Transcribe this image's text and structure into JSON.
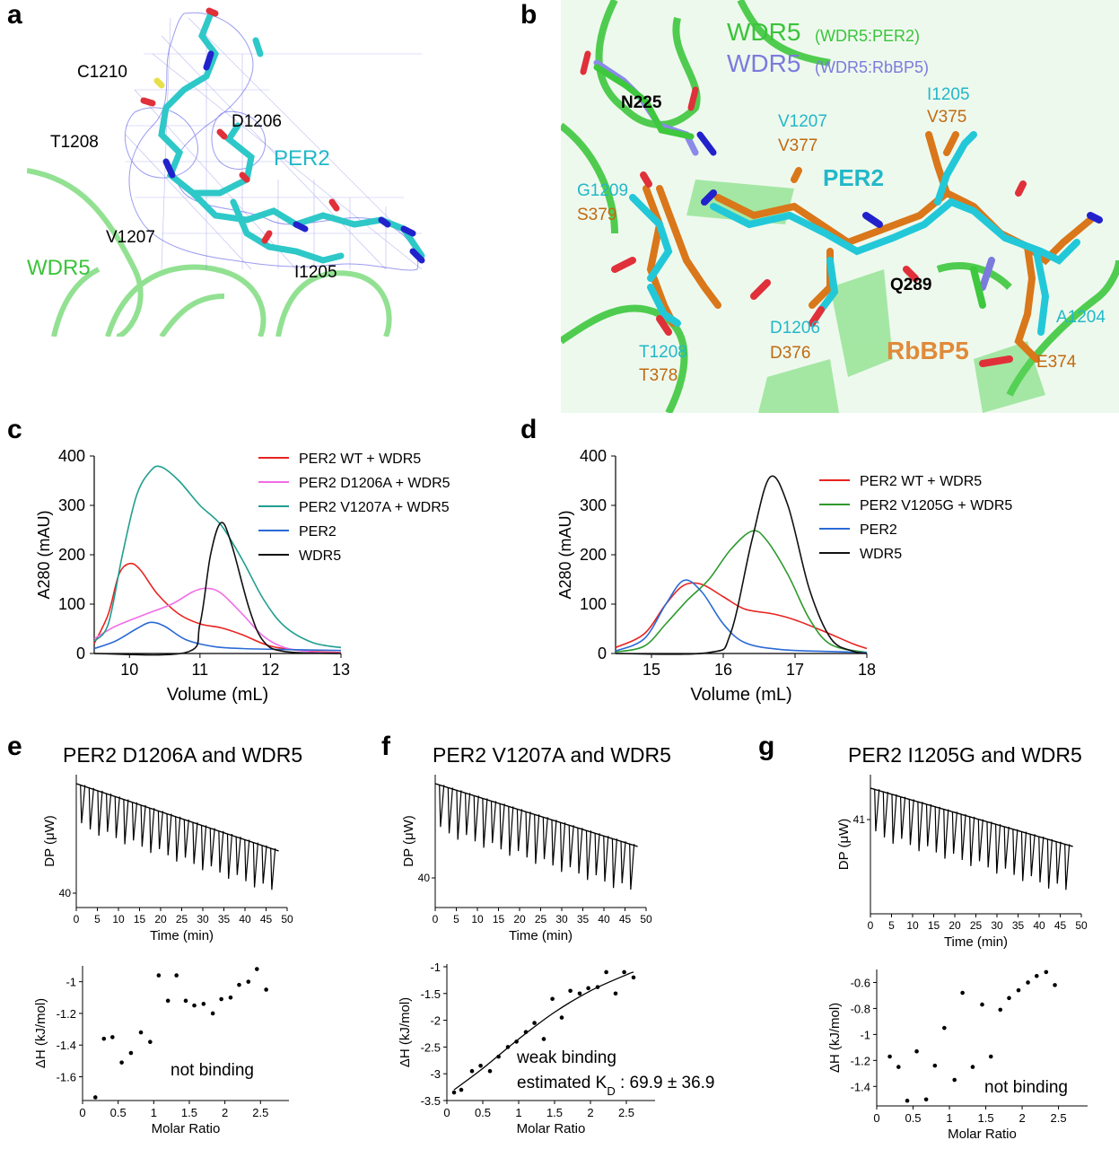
{
  "panels": {
    "a": "a",
    "b": "b",
    "c": "c",
    "d": "d",
    "e": "e",
    "f": "f",
    "g": "g"
  },
  "panel_a": {
    "labels": {
      "c1210": "C1210",
      "d1206": "D1206",
      "t1208": "T1208",
      "per2": "PER2",
      "v1207": "V1207",
      "wdr5": "WDR5",
      "i1205": "I1205"
    }
  },
  "panel_b": {
    "labels": {
      "wdr5_top": "WDR5",
      "wdr5_top_sub": "(WDR5:PER2)",
      "wdr5_mid": "WDR5",
      "wdr5_mid_sub": "(WDR5:RbBP5)",
      "n225": "N225",
      "i1205": "I1205",
      "v375": "V375",
      "v1207": "V1207",
      "v377": "V377",
      "per2": "PER2",
      "g1209": "G1209",
      "s379": "S379",
      "q289": "Q289",
      "a1204": "A1204",
      "d1206": "D1206",
      "d376": "D376",
      "rbbp5": "RbBP5",
      "t1208": "T1208",
      "t378": "T378",
      "e374": "E374"
    },
    "colors": {
      "wdr5": "#33cc33",
      "rbbp5_wdr5": "#7b7bdc",
      "per2": "#22b8c8",
      "rbbp5": "#d97a1a"
    }
  },
  "chart_data": [
    {
      "id": "c",
      "type": "line",
      "xlabel": "Volume (mL)",
      "ylabel": "A280 (mAU)",
      "xlim": [
        9.5,
        13
      ],
      "ylim": [
        0,
        400
      ],
      "xticks": [
        10,
        11,
        12,
        13
      ],
      "yticks": [
        0,
        100,
        200,
        300,
        400
      ],
      "legend_position": "top-right",
      "series": [
        {
          "name": "PER2 WT + WDR5",
          "color": "#e8231f",
          "points": [
            [
              9.5,
              20
            ],
            [
              9.7,
              80
            ],
            [
              9.85,
              160
            ],
            [
              10.0,
              182
            ],
            [
              10.15,
              170
            ],
            [
              10.4,
              120
            ],
            [
              10.7,
              80
            ],
            [
              11.0,
              60
            ],
            [
              11.3,
              52
            ],
            [
              11.6,
              38
            ],
            [
              12.0,
              15
            ],
            [
              12.5,
              5
            ],
            [
              13,
              2
            ]
          ]
        },
        {
          "name": "PER2 D1206A + WDR5",
          "color": "#f06ce6",
          "points": [
            [
              9.5,
              30
            ],
            [
              9.8,
              55
            ],
            [
              10.2,
              78
            ],
            [
              10.6,
              100
            ],
            [
              10.9,
              125
            ],
            [
              11.1,
              132
            ],
            [
              11.3,
              122
            ],
            [
              11.6,
              80
            ],
            [
              11.9,
              35
            ],
            [
              12.2,
              12
            ],
            [
              12.6,
              3
            ],
            [
              13,
              1
            ]
          ]
        },
        {
          "name": "PER2 V1207A + WDR5",
          "color": "#1f9e8f",
          "points": [
            [
              9.5,
              25
            ],
            [
              9.7,
              60
            ],
            [
              9.9,
              200
            ],
            [
              10.1,
              320
            ],
            [
              10.3,
              370
            ],
            [
              10.45,
              378
            ],
            [
              10.7,
              350
            ],
            [
              11.0,
              300
            ],
            [
              11.3,
              260
            ],
            [
              11.6,
              190
            ],
            [
              11.9,
              110
            ],
            [
              12.2,
              55
            ],
            [
              12.6,
              22
            ],
            [
              13,
              12
            ]
          ]
        },
        {
          "name": "PER2",
          "color": "#2a6ad6",
          "points": [
            [
              9.5,
              10
            ],
            [
              9.8,
              25
            ],
            [
              10.1,
              50
            ],
            [
              10.3,
              63
            ],
            [
              10.5,
              55
            ],
            [
              10.8,
              28
            ],
            [
              11.2,
              14
            ],
            [
              11.6,
              10
            ],
            [
              12.2,
              8
            ],
            [
              13,
              6
            ]
          ]
        },
        {
          "name": "WDR5",
          "color": "#111111",
          "points": [
            [
              9.5,
              0
            ],
            [
              10.8,
              2
            ],
            [
              11.0,
              60
            ],
            [
              11.15,
              200
            ],
            [
              11.3,
              265
            ],
            [
              11.45,
              220
            ],
            [
              11.7,
              90
            ],
            [
              11.9,
              25
            ],
            [
              12.2,
              4
            ],
            [
              13,
              0
            ]
          ]
        }
      ]
    },
    {
      "id": "d",
      "type": "line",
      "xlabel": "Volume (mL)",
      "ylabel": "A280 (mAU)",
      "xlim": [
        14.5,
        18
      ],
      "ylim": [
        0,
        400
      ],
      "xticks": [
        15,
        16,
        17,
        18
      ],
      "yticks": [
        0,
        100,
        200,
        300,
        400
      ],
      "legend_position": "top-right",
      "series": [
        {
          "name": "PER2 WT + WDR5",
          "color": "#e8231f",
          "points": [
            [
              14.5,
              12
            ],
            [
              14.9,
              40
            ],
            [
              15.2,
              100
            ],
            [
              15.45,
              138
            ],
            [
              15.7,
              140
            ],
            [
              16.0,
              115
            ],
            [
              16.3,
              90
            ],
            [
              16.7,
              80
            ],
            [
              17.0,
              68
            ],
            [
              17.4,
              45
            ],
            [
              17.8,
              20
            ],
            [
              18,
              10
            ]
          ]
        },
        {
          "name": "PER2 V1205G + WDR5",
          "color": "#2e9a2e",
          "points": [
            [
              14.5,
              3
            ],
            [
              14.9,
              15
            ],
            [
              15.2,
              60
            ],
            [
              15.5,
              108
            ],
            [
              15.8,
              150
            ],
            [
              16.1,
              210
            ],
            [
              16.4,
              248
            ],
            [
              16.6,
              230
            ],
            [
              16.9,
              160
            ],
            [
              17.2,
              70
            ],
            [
              17.5,
              18
            ],
            [
              18,
              2
            ]
          ]
        },
        {
          "name": "PER2",
          "color": "#2a6ad6",
          "points": [
            [
              14.5,
              5
            ],
            [
              14.9,
              30
            ],
            [
              15.2,
              100
            ],
            [
              15.45,
              148
            ],
            [
              15.7,
              125
            ],
            [
              16.0,
              60
            ],
            [
              16.3,
              22
            ],
            [
              16.8,
              8
            ],
            [
              17.5,
              4
            ],
            [
              18,
              2
            ]
          ]
        },
        {
          "name": "WDR5",
          "color": "#111111",
          "points": [
            [
              14.5,
              0
            ],
            [
              15.8,
              2
            ],
            [
              16.1,
              40
            ],
            [
              16.4,
              230
            ],
            [
              16.65,
              357
            ],
            [
              16.9,
              300
            ],
            [
              17.2,
              130
            ],
            [
              17.5,
              30
            ],
            [
              17.8,
              5
            ],
            [
              18,
              0
            ]
          ]
        }
      ]
    },
    {
      "id": "e-top",
      "type": "line",
      "xlabel": "Time (min)",
      "ylabel": "DP (μW)",
      "xlim": [
        0,
        50
      ],
      "xticks": [
        0,
        5,
        10,
        15,
        20,
        25,
        30,
        35,
        40,
        45,
        50
      ],
      "yticks_labels": [
        "40"
      ],
      "injections": 23
    },
    {
      "id": "e-bottom",
      "type": "scatter",
      "xlabel": "Molar Ratio",
      "ylabel": "ΔH (kJ/mol)",
      "xlim": [
        0,
        2.9
      ],
      "ylim": [
        -1.75,
        -0.9
      ],
      "xticks": [
        0,
        0.5,
        1,
        1.5,
        2,
        2.5
      ],
      "yticks": [
        -1.6,
        -1.4,
        -1.2,
        -1
      ],
      "annotation": "not binding",
      "points": [
        [
          0.18,
          -1.73
        ],
        [
          0.3,
          -1.36
        ],
        [
          0.42,
          -1.35
        ],
        [
          0.55,
          -1.51
        ],
        [
          0.68,
          -1.45
        ],
        [
          0.82,
          -1.32
        ],
        [
          0.95,
          -1.38
        ],
        [
          1.07,
          -0.96
        ],
        [
          1.2,
          -1.12
        ],
        [
          1.32,
          -0.96
        ],
        [
          1.45,
          -1.12
        ],
        [
          1.57,
          -1.15
        ],
        [
          1.7,
          -1.14
        ],
        [
          1.83,
          -1.2
        ],
        [
          1.95,
          -1.11
        ],
        [
          2.08,
          -1.1
        ],
        [
          2.2,
          -1.02
        ],
        [
          2.33,
          -1.0
        ],
        [
          2.45,
          -0.92
        ],
        [
          2.58,
          -1.05
        ]
      ]
    },
    {
      "id": "f-top",
      "type": "line",
      "xlabel": "Time (min)",
      "ylabel": "DP (μW)",
      "xlim": [
        0,
        50
      ],
      "xticks": [
        0,
        5,
        10,
        15,
        20,
        25,
        30,
        35,
        40,
        45,
        50
      ],
      "yticks_labels": [
        "40"
      ],
      "injections": 23
    },
    {
      "id": "f-bottom",
      "type": "scatter",
      "xlabel": "Molar Ratio",
      "ylabel": "ΔH (kJ/mol)",
      "xlim": [
        0,
        2.9
      ],
      "ylim": [
        -3.5,
        -0.95
      ],
      "xticks": [
        0,
        0.5,
        1,
        1.5,
        2,
        2.5
      ],
      "yticks": [
        -3.5,
        -3,
        -2.5,
        -2,
        -1.5,
        -1
      ],
      "annotation": "weak binding",
      "annotation2_prefix": "estimated K",
      "annotation2_sub": "D",
      "annotation2_suffix": " : 69.9 ± 36.9",
      "points": [
        [
          0.1,
          -3.35
        ],
        [
          0.2,
          -3.3
        ],
        [
          0.35,
          -2.95
        ],
        [
          0.47,
          -2.85
        ],
        [
          0.6,
          -2.95
        ],
        [
          0.72,
          -2.68
        ],
        [
          0.85,
          -2.5
        ],
        [
          0.97,
          -2.4
        ],
        [
          1.1,
          -2.22
        ],
        [
          1.22,
          -2.05
        ],
        [
          1.35,
          -2.35
        ],
        [
          1.47,
          -1.6
        ],
        [
          1.6,
          -1.95
        ],
        [
          1.72,
          -1.45
        ],
        [
          1.85,
          -1.5
        ],
        [
          1.97,
          -1.4
        ],
        [
          2.1,
          -1.38
        ],
        [
          2.22,
          -1.1
        ],
        [
          2.35,
          -1.5
        ],
        [
          2.47,
          -1.1
        ],
        [
          2.6,
          -1.2
        ]
      ],
      "fit": [
        [
          0.1,
          -3.3
        ],
        [
          0.5,
          -2.9
        ],
        [
          1.0,
          -2.35
        ],
        [
          1.5,
          -1.85
        ],
        [
          2.0,
          -1.45
        ],
        [
          2.5,
          -1.15
        ],
        [
          2.6,
          -1.1
        ]
      ]
    },
    {
      "id": "g-top",
      "type": "line",
      "xlabel": "Time (min)",
      "ylabel": "DP (μW)",
      "xlim": [
        0,
        50
      ],
      "xticks": [
        0,
        5,
        10,
        15,
        20,
        25,
        30,
        35,
        40,
        45,
        50
      ],
      "yticks_labels": [
        "41"
      ],
      "injections": 23
    },
    {
      "id": "g-bottom",
      "type": "scatter",
      "xlabel": "Molar Ratio",
      "ylabel": "ΔH (kJ/mol)",
      "xlim": [
        0,
        2.9
      ],
      "ylim": [
        -1.55,
        -0.5
      ],
      "xticks": [
        0,
        0.5,
        1,
        1.5,
        2,
        2.5
      ],
      "yticks": [
        -1.4,
        -1.2,
        -1,
        -0.8,
        -0.6
      ],
      "annotation": "not binding",
      "points": [
        [
          0.18,
          -1.17
        ],
        [
          0.3,
          -1.25
        ],
        [
          0.42,
          -1.51
        ],
        [
          0.55,
          -1.13
        ],
        [
          0.68,
          -1.5
        ],
        [
          0.8,
          -1.24
        ],
        [
          0.93,
          -0.95
        ],
        [
          1.07,
          -1.35
        ],
        [
          1.18,
          -0.68
        ],
        [
          1.32,
          -1.25
        ],
        [
          1.45,
          -0.77
        ],
        [
          1.57,
          -1.17
        ],
        [
          1.7,
          -0.81
        ],
        [
          1.82,
          -0.72
        ],
        [
          1.95,
          -0.66
        ],
        [
          2.08,
          -0.6
        ],
        [
          2.2,
          -0.55
        ],
        [
          2.33,
          -0.52
        ],
        [
          2.45,
          -0.62
        ]
      ]
    }
  ],
  "titles": {
    "e": "PER2 D1206A and WDR5",
    "f": "PER2 V1207A and WDR5",
    "g": "PER2 I1205G and WDR5"
  }
}
